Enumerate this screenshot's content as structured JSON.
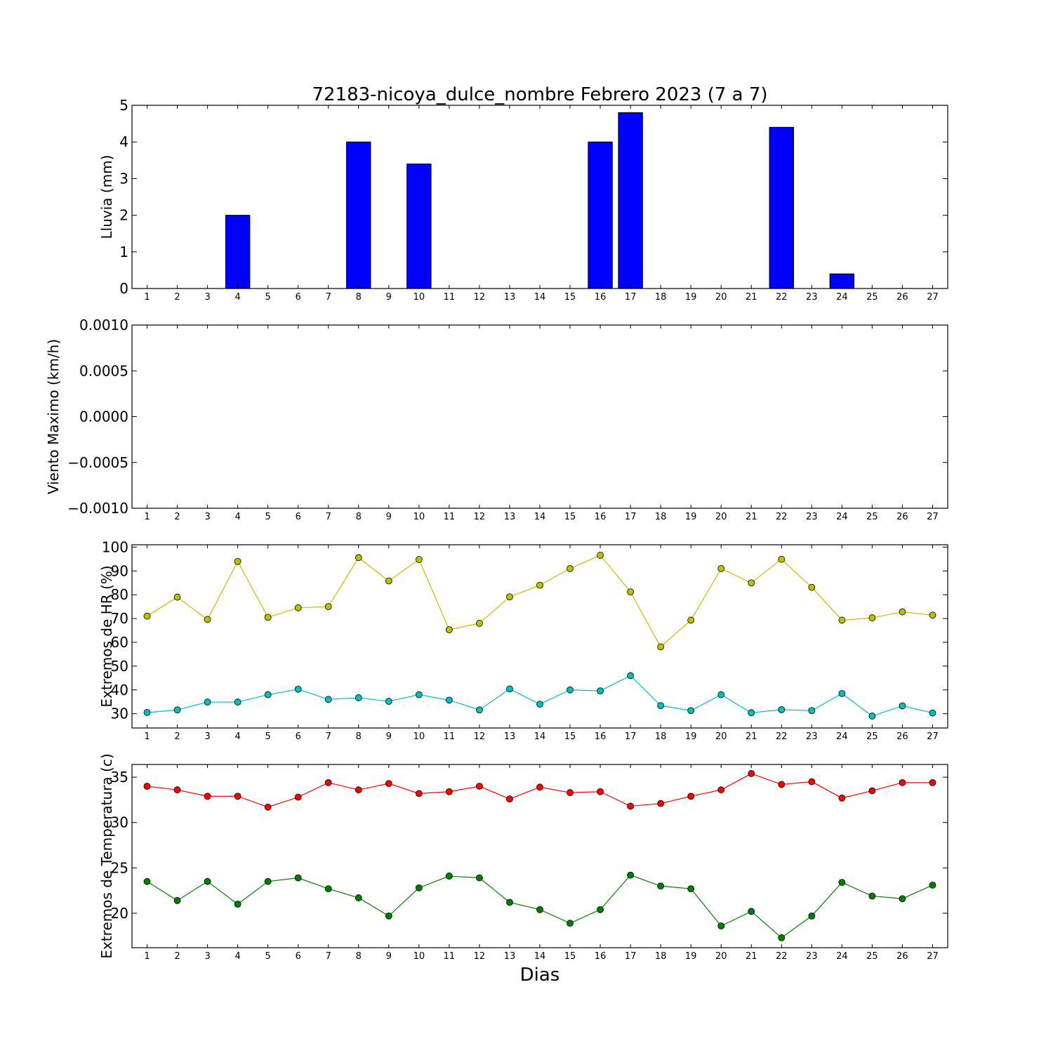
{
  "chart_data": {
    "title": "72183-nicoya_dulce_nombre Febrero 2023  (7 a 7)",
    "xlabel": "Dias",
    "days": [
      1,
      2,
      3,
      4,
      5,
      6,
      7,
      8,
      9,
      10,
      11,
      12,
      13,
      14,
      15,
      16,
      17,
      18,
      19,
      20,
      21,
      22,
      23,
      24,
      25,
      26,
      27
    ],
    "panels": [
      {
        "id": "lluvia",
        "type": "bar",
        "ylabel": "Lluvia (mm)",
        "ylim": [
          0,
          5
        ],
        "yticks": [
          0,
          1,
          2,
          3,
          4,
          5
        ],
        "yticklabels": [
          "0",
          "1",
          "2",
          "3",
          "4",
          "5"
        ],
        "series": [
          {
            "color": "#0000ff",
            "values": [
              0,
              0,
              0,
              2.0,
              0,
              0,
              0,
              4.0,
              0,
              3.4,
              0,
              0,
              0,
              0,
              0,
              4.0,
              4.8,
              0,
              0,
              0,
              0,
              4.4,
              0,
              0.4,
              0,
              0,
              0
            ]
          }
        ]
      },
      {
        "id": "viento",
        "type": "line",
        "ylabel": "Viento Maximo (km/h)",
        "ylim": [
          -0.001,
          0.001
        ],
        "yticks": [
          -0.001,
          -0.0005,
          0.0,
          0.0005,
          0.001
        ],
        "yticklabels": [
          "−0.0010",
          "−0.0005",
          "0.0000",
          "0.0005",
          "0.0010"
        ],
        "series": []
      },
      {
        "id": "humedad",
        "type": "line",
        "ylabel": "Extremos de HR (%)",
        "ylim": [
          24,
          101
        ],
        "yticks": [
          30,
          40,
          50,
          60,
          70,
          80,
          90,
          100
        ],
        "yticklabels": [
          "30",
          "40",
          "50",
          "60",
          "70",
          "80",
          "90",
          "100"
        ],
        "series": [
          {
            "color": "#bfbf00",
            "values": [
              71,
              79,
              69.6,
              94,
              70.5,
              74.5,
              75,
              95.6,
              85.8,
              94.8,
              65.3,
              68,
              79.1,
              84,
              91,
              96.6,
              81.2,
              58.1,
              69.3,
              91,
              85,
              94.9,
              83.1,
              69.3,
              70.3,
              72.8,
              71.4
            ]
          },
          {
            "color": "#00bfbf",
            "values": [
              30.5,
              31.6,
              34.9,
              34.9,
              38,
              40.3,
              36,
              36.7,
              35.2,
              38,
              35.7,
              31.6,
              40.4,
              34,
              40,
              39.6,
              46,
              33.4,
              31.3,
              38,
              30.4,
              31.7,
              31.3,
              38.5,
              29,
              33.3,
              30.3
            ]
          }
        ]
      },
      {
        "id": "temperatura",
        "type": "line",
        "ylabel": "Extremos de Temperatura (c)",
        "ylim": [
          16.2,
          36.4
        ],
        "yticks": [
          20,
          25,
          30,
          35
        ],
        "yticklabels": [
          "20",
          "25",
          "30",
          "35"
        ],
        "series": [
          {
            "color": "#ff0000",
            "values": [
              34,
              33.6,
              32.9,
              32.9,
              31.7,
              32.8,
              34.4,
              33.6,
              34.3,
              33.2,
              33.4,
              34,
              32.6,
              33.9,
              33.3,
              33.4,
              31.8,
              32.1,
              32.9,
              33.6,
              35.4,
              34.2,
              34.5,
              32.7,
              33.5,
              34.4,
              34.4
            ]
          },
          {
            "color": "#008000",
            "values": [
              23.5,
              21.4,
              23.5,
              21,
              23.5,
              23.9,
              22.7,
              21.7,
              19.7,
              22.8,
              24.1,
              23.9,
              21.2,
              20.4,
              18.9,
              20.4,
              24.2,
              23,
              22.7,
              18.6,
              20.2,
              17.3,
              19.7,
              23.4,
              21.9,
              21.6,
              23.1
            ]
          }
        ]
      }
    ]
  }
}
